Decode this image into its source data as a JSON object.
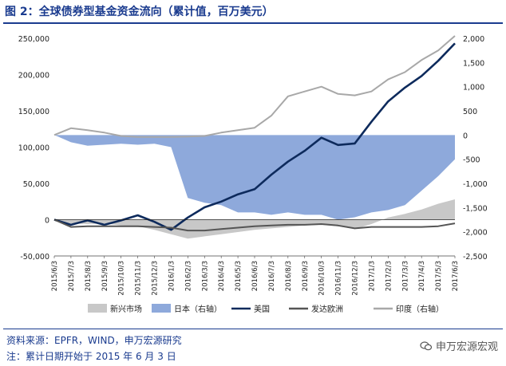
{
  "figure": {
    "title": "图 2：全球债券型基金资金流向（累计值，百万美元）",
    "source": "资料来源：EPFR，WIND，申万宏源研究",
    "note": "注：累计日期开始于 2015 年 6 月 3 日",
    "watermark": "申万宏源宏观"
  },
  "chart_data": {
    "type": "line",
    "title": "全球债券型基金资金流向（累计值，百万美元）",
    "x": [
      "2015/6/3",
      "2015/7/3",
      "2015/8/3",
      "2015/9/3",
      "2015/10/3",
      "2015/11/3",
      "2015/12/3",
      "2016/1/3",
      "2016/2/3",
      "2016/3/3",
      "2016/4/3",
      "2016/5/3",
      "2016/6/3",
      "2016/7/3",
      "2016/8/3",
      "2016/9/3",
      "2016/10/3",
      "2016/11/3",
      "2016/12/3",
      "2017/1/3",
      "2017/2/3",
      "2017/3/3",
      "2017/4/3",
      "2017/5/3",
      "2017/6/3"
    ],
    "left_axis": {
      "ylim": [
        -50000,
        250000
      ],
      "ticks": [
        -50000,
        0,
        50000,
        100000,
        150000,
        200000,
        250000
      ],
      "tick_labels": [
        "-50,000",
        "0",
        "50,000",
        "100,000",
        "150,000",
        "200,000",
        "250,000"
      ]
    },
    "right_axis": {
      "ylim": [
        -2500,
        2000
      ],
      "ticks": [
        -2500,
        -2000,
        -1500,
        -1000,
        -500,
        0,
        500,
        1000,
        1500,
        2000
      ],
      "tick_labels": [
        "-2,500",
        "-2,000",
        "-1,500",
        "-1,000",
        "-500",
        "0",
        "500",
        "1,000",
        "1,500",
        "2,000"
      ]
    },
    "series": [
      {
        "name": "新兴市场",
        "axis": "left",
        "style": "area",
        "color": "#c8c8c8",
        "values": [
          0,
          -5000,
          -6000,
          -5000,
          -8000,
          -9000,
          -14000,
          -20000,
          -26000,
          -23000,
          -20000,
          -17000,
          -14000,
          -12000,
          -10000,
          -8000,
          -7000,
          -9000,
          -13000,
          -6000,
          3000,
          8000,
          14000,
          22000,
          28000
        ]
      },
      {
        "name": "日本（右轴）",
        "axis": "right",
        "style": "area",
        "color": "#8ea9db",
        "values": [
          0,
          -150,
          -220,
          -200,
          -180,
          -200,
          -180,
          -250,
          -1300,
          -1400,
          -1450,
          -1600,
          -1600,
          -1650,
          -1600,
          -1650,
          -1650,
          -1750,
          -1700,
          -1600,
          -1550,
          -1450,
          -1150,
          -850,
          -500
        ]
      },
      {
        "name": "美国",
        "axis": "left",
        "style": "line",
        "color": "#0d2a5c",
        "values": [
          0,
          -7000,
          -1000,
          -7000,
          -1000,
          6000,
          -3000,
          -14000,
          3000,
          17000,
          25000,
          35000,
          42000,
          62000,
          80000,
          95000,
          113000,
          103000,
          105000,
          135000,
          163000,
          182000,
          198000,
          219000,
          243000
        ]
      },
      {
        "name": "发达欧洲",
        "axis": "left",
        "style": "line",
        "color": "#555555",
        "values": [
          0,
          -10000,
          -9000,
          -9000,
          -9000,
          -9000,
          -10000,
          -11000,
          -15000,
          -15000,
          -13000,
          -11000,
          -9000,
          -8000,
          -7000,
          -7000,
          -6000,
          -8000,
          -12000,
          -10000,
          -10000,
          -10000,
          -10000,
          -9000,
          -5000
        ]
      },
      {
        "name": "印度（右轴）",
        "axis": "right",
        "style": "line",
        "color": "#a8a8a8",
        "values": [
          0,
          140,
          100,
          50,
          -20,
          -40,
          -40,
          -40,
          -30,
          -20,
          50,
          100,
          150,
          400,
          800,
          900,
          1000,
          850,
          820,
          900,
          1150,
          1300,
          1550,
          1750,
          2050
        ]
      }
    ]
  }
}
